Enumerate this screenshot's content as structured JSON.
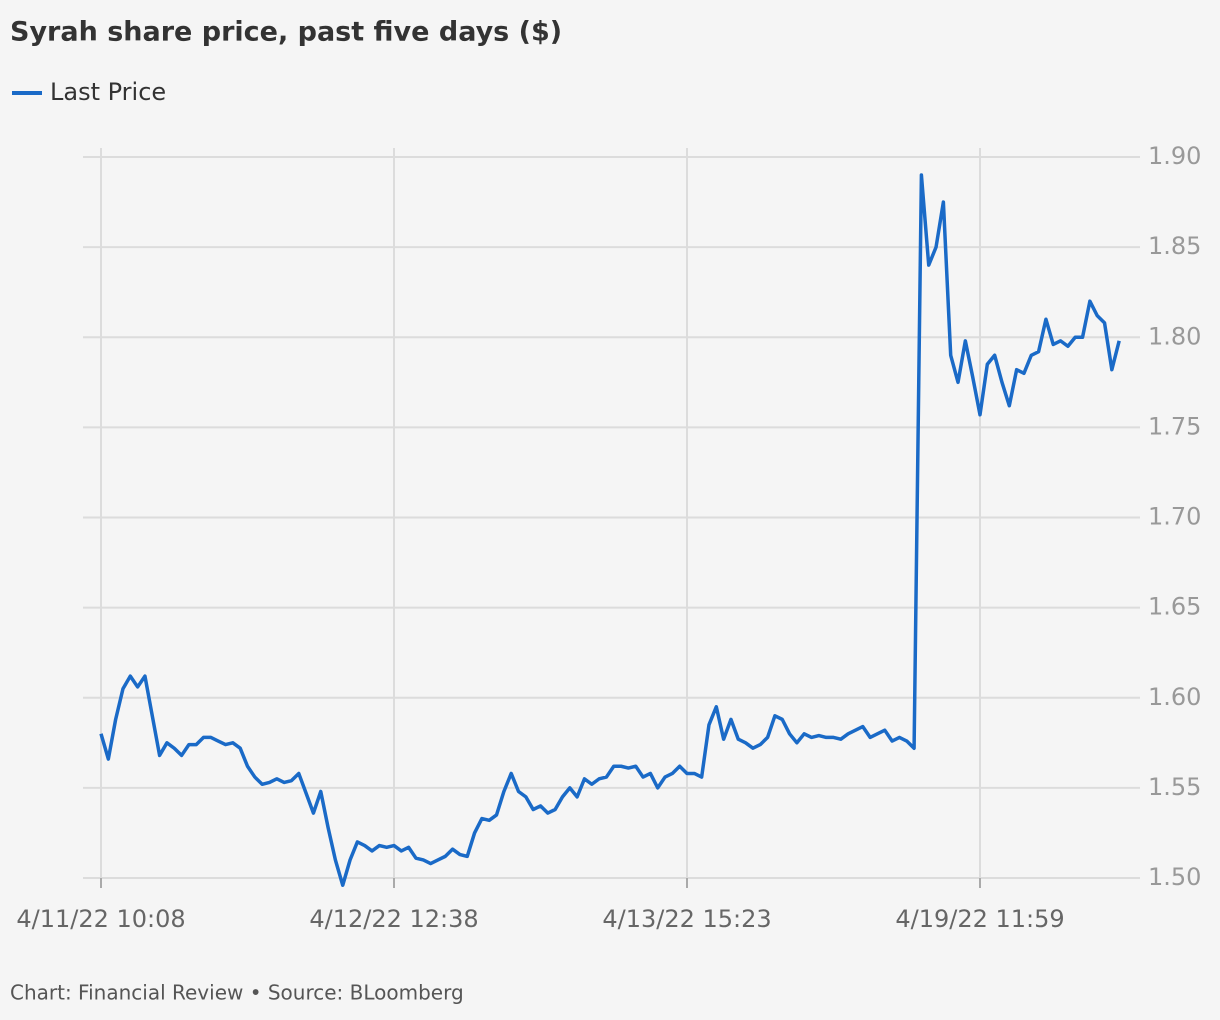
{
  "chart_data": {
    "type": "line",
    "title": "Syrah share price, past five days ($)",
    "source": "Chart: Financial Review • Source: BLoomberg",
    "categories": [
      "4/11/22 10:08",
      null,
      null,
      null,
      null,
      null,
      null,
      null,
      null,
      null,
      null,
      null,
      null,
      null,
      null,
      null,
      null,
      null,
      null,
      null,
      null,
      null,
      null,
      null,
      null,
      null,
      null,
      null,
      null,
      null,
      null,
      null,
      null,
      null,
      null,
      null,
      null,
      null,
      null,
      null,
      "4/12/22 12:38",
      null,
      null,
      null,
      null,
      null,
      null,
      null,
      null,
      null,
      null,
      null,
      null,
      null,
      null,
      null,
      null,
      null,
      null,
      null,
      null,
      null,
      null,
      null,
      null,
      null,
      null,
      null,
      null,
      null,
      null,
      null,
      null,
      null,
      null,
      null,
      null,
      null,
      null,
      null,
      "4/13/22 15:23",
      null,
      null,
      null,
      null,
      null,
      null,
      null,
      null,
      null,
      null,
      null,
      null,
      null,
      null,
      null,
      null,
      null,
      null,
      null,
      null,
      null,
      null,
      null,
      null,
      null,
      null,
      null,
      null,
      null,
      null,
      null,
      null,
      null,
      null,
      null,
      null,
      null,
      null,
      null,
      "4/19/22 11:59",
      null,
      null,
      null,
      null,
      null,
      null,
      null,
      null,
      null,
      null,
      null,
      null,
      null,
      null,
      null,
      null,
      null,
      null,
      null
    ],
    "series": [
      {
        "name": "Last Price",
        "color": "#1a6ac7",
        "values": [
          1.58,
          1.566,
          1.588,
          1.605,
          1.612,
          1.606,
          1.612,
          1.59,
          1.568,
          1.575,
          1.572,
          1.568,
          1.574,
          1.574,
          1.578,
          1.578,
          1.576,
          1.574,
          1.575,
          1.572,
          1.562,
          1.556,
          1.552,
          1.553,
          1.555,
          1.553,
          1.554,
          1.558,
          1.547,
          1.536,
          1.548,
          1.528,
          1.51,
          1.496,
          1.51,
          1.52,
          1.518,
          1.515,
          1.518,
          1.517,
          1.518,
          1.515,
          1.517,
          1.511,
          1.51,
          1.508,
          1.51,
          1.512,
          1.516,
          1.513,
          1.512,
          1.525,
          1.533,
          1.532,
          1.535,
          1.548,
          1.558,
          1.548,
          1.545,
          1.538,
          1.54,
          1.536,
          1.538,
          1.545,
          1.55,
          1.545,
          1.555,
          1.552,
          1.555,
          1.556,
          1.562,
          1.562,
          1.561,
          1.562,
          1.556,
          1.558,
          1.55,
          1.556,
          1.558,
          1.562,
          1.558,
          1.558,
          1.556,
          1.585,
          1.595,
          1.577,
          1.588,
          1.577,
          1.575,
          1.572,
          1.574,
          1.578,
          1.59,
          1.588,
          1.58,
          1.575,
          1.58,
          1.578,
          1.579,
          1.578,
          1.578,
          1.577,
          1.58,
          1.582,
          1.584,
          1.578,
          1.58,
          1.582,
          1.576,
          1.578,
          1.576,
          1.572,
          1.89,
          1.84,
          1.85,
          1.875,
          1.79,
          1.775,
          1.798,
          1.778,
          1.757,
          1.785,
          1.79,
          1.775,
          1.762,
          1.782,
          1.78,
          1.79,
          1.792,
          1.81,
          1.796,
          1.798,
          1.795,
          1.8,
          1.8,
          1.82,
          1.812,
          1.808,
          1.782,
          1.798
        ]
      }
    ],
    "ylim": [
      1.5,
      1.9
    ],
    "yticks": [
      {
        "value": 1.5,
        "label": "1.50"
      },
      1.55,
      {
        "value": 1.6,
        "label": "1.60"
      },
      1.65,
      {
        "value": 1.7,
        "label": "1.70"
      },
      1.75,
      {
        "value": 1.8,
        "label": "1.80"
      },
      1.85,
      {
        "value": 1.9,
        "label": "1.90"
      }
    ],
    "grid": true
  }
}
